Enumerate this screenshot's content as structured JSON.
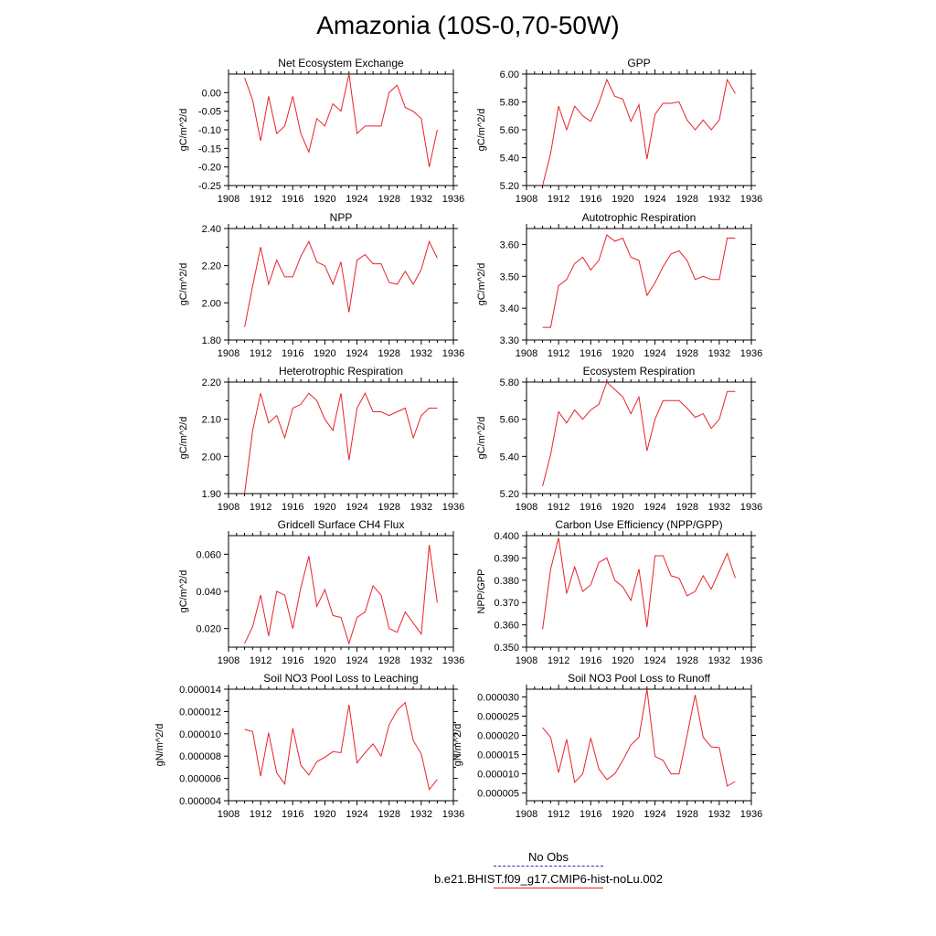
{
  "page": {
    "title": "Amazonia (10S-0,70-50W)"
  },
  "legend": {
    "obs_label": "No Obs",
    "obs_color": "#1f2fb8",
    "run_label": "b.e21.BHIST.f09_g17.CMIP6-hist-noLu.002",
    "run_color": "#e8222a"
  },
  "chart_data": [
    {
      "type": "line",
      "title": "Net Ecosystem Exchange",
      "xlabel": "",
      "ylabel": "gC/m^2/d",
      "xlim": [
        1908,
        1936
      ],
      "ylim": [
        -0.25,
        0.05
      ],
      "xticks": [
        1908,
        1912,
        1916,
        1920,
        1924,
        1928,
        1932,
        1936
      ],
      "yticks": [
        -0.25,
        -0.2,
        -0.15,
        -0.1,
        -0.05,
        0
      ],
      "ytick_labels": [
        "-0.25",
        "-0.20",
        "-0.15",
        "-0.10",
        "-0.05",
        "0.00"
      ],
      "x": [
        1910,
        1911,
        1912,
        1913,
        1914,
        1915,
        1916,
        1917,
        1918,
        1919,
        1920,
        1921,
        1922,
        1923,
        1924,
        1925,
        1926,
        1927,
        1928,
        1929,
        1930,
        1931,
        1932,
        1933,
        1934
      ],
      "series": [
        {
          "values": [
            0.04,
            -0.02,
            -0.13,
            -0.01,
            -0.11,
            -0.09,
            -0.01,
            -0.11,
            -0.16,
            -0.07,
            -0.09,
            -0.03,
            -0.05,
            0.05,
            -0.11,
            -0.09,
            -0.09,
            -0.09,
            0.0,
            0.02,
            -0.04,
            -0.05,
            -0.07,
            -0.2,
            -0.1
          ],
          "color": "#e8222a"
        }
      ]
    },
    {
      "type": "line",
      "title": "GPP",
      "xlabel": "",
      "ylabel": "gC/m^2/d",
      "xlim": [
        1908,
        1936
      ],
      "ylim": [
        5.2,
        6.0
      ],
      "xticks": [
        1908,
        1912,
        1916,
        1920,
        1924,
        1928,
        1932,
        1936
      ],
      "yticks": [
        5.2,
        5.4,
        5.6,
        5.8,
        6.0
      ],
      "ytick_labels": [
        "5.20",
        "5.40",
        "5.60",
        "5.80",
        "6.00"
      ],
      "x": [
        1910,
        1911,
        1912,
        1913,
        1914,
        1915,
        1916,
        1917,
        1918,
        1919,
        1920,
        1921,
        1922,
        1923,
        1924,
        1925,
        1926,
        1927,
        1928,
        1929,
        1930,
        1931,
        1932,
        1933,
        1934
      ],
      "series": [
        {
          "values": [
            5.2,
            5.43,
            5.77,
            5.6,
            5.77,
            5.7,
            5.66,
            5.79,
            5.96,
            5.84,
            5.82,
            5.66,
            5.78,
            5.39,
            5.71,
            5.79,
            5.79,
            5.8,
            5.67,
            5.6,
            5.67,
            5.6,
            5.67,
            5.96,
            5.86
          ],
          "color": "#e8222a"
        }
      ]
    },
    {
      "type": "line",
      "title": "NPP",
      "xlabel": "",
      "ylabel": "gC/m^2/d",
      "xlim": [
        1908,
        1936
      ],
      "ylim": [
        1.8,
        2.4
      ],
      "xticks": [
        1908,
        1912,
        1916,
        1920,
        1924,
        1928,
        1932,
        1936
      ],
      "yticks": [
        1.8,
        2.0,
        2.2,
        2.4
      ],
      "ytick_labels": [
        "1.80",
        "2.00",
        "2.20",
        "2.40"
      ],
      "x": [
        1910,
        1911,
        1912,
        1913,
        1914,
        1915,
        1916,
        1917,
        1918,
        1919,
        1920,
        1921,
        1922,
        1923,
        1924,
        1925,
        1926,
        1927,
        1928,
        1929,
        1930,
        1931,
        1932,
        1933,
        1934
      ],
      "series": [
        {
          "values": [
            1.87,
            2.09,
            2.3,
            2.1,
            2.23,
            2.14,
            2.14,
            2.25,
            2.33,
            2.22,
            2.2,
            2.1,
            2.22,
            1.95,
            2.23,
            2.26,
            2.21,
            2.21,
            2.11,
            2.1,
            2.17,
            2.1,
            2.18,
            2.33,
            2.24
          ],
          "color": "#e8222a"
        }
      ]
    },
    {
      "type": "line",
      "title": "Autotrophic Respiration",
      "xlabel": "",
      "ylabel": "gC/m^2/d",
      "xlim": [
        1908,
        1936
      ],
      "ylim": [
        3.3,
        3.65
      ],
      "xticks": [
        1908,
        1912,
        1916,
        1920,
        1924,
        1928,
        1932,
        1936
      ],
      "yticks": [
        3.3,
        3.4,
        3.5,
        3.6
      ],
      "ytick_labels": [
        "3.30",
        "3.40",
        "3.50",
        "3.60"
      ],
      "x": [
        1910,
        1911,
        1912,
        1913,
        1914,
        1915,
        1916,
        1917,
        1918,
        1919,
        1920,
        1921,
        1922,
        1923,
        1924,
        1925,
        1926,
        1927,
        1928,
        1929,
        1930,
        1931,
        1932,
        1933,
        1934
      ],
      "series": [
        {
          "values": [
            3.34,
            3.34,
            3.47,
            3.49,
            3.54,
            3.56,
            3.52,
            3.55,
            3.63,
            3.61,
            3.62,
            3.56,
            3.55,
            3.44,
            3.48,
            3.53,
            3.57,
            3.58,
            3.55,
            3.49,
            3.5,
            3.49,
            3.49,
            3.62,
            3.62
          ],
          "color": "#e8222a"
        }
      ]
    },
    {
      "type": "line",
      "title": "Heterotrophic Respiration",
      "xlabel": "",
      "ylabel": "gC/m^2/d",
      "xlim": [
        1908,
        1936
      ],
      "ylim": [
        1.9,
        2.2
      ],
      "xticks": [
        1908,
        1912,
        1916,
        1920,
        1924,
        1928,
        1932,
        1936
      ],
      "yticks": [
        1.9,
        2.0,
        2.1,
        2.2
      ],
      "ytick_labels": [
        "1.90",
        "2.00",
        "2.10",
        "2.20"
      ],
      "x": [
        1910,
        1911,
        1912,
        1913,
        1914,
        1915,
        1916,
        1917,
        1918,
        1919,
        1920,
        1921,
        1922,
        1923,
        1924,
        1925,
        1926,
        1927,
        1928,
        1929,
        1930,
        1931,
        1932,
        1933,
        1934
      ],
      "series": [
        {
          "values": [
            1.9,
            2.07,
            2.17,
            2.09,
            2.11,
            2.05,
            2.13,
            2.14,
            2.17,
            2.15,
            2.1,
            2.07,
            2.17,
            1.99,
            2.13,
            2.17,
            2.12,
            2.12,
            2.11,
            2.12,
            2.13,
            2.05,
            2.11,
            2.13,
            2.13
          ],
          "color": "#e8222a"
        }
      ]
    },
    {
      "type": "line",
      "title": "Ecosystem Respiration",
      "xlabel": "",
      "ylabel": "gC/m^2/d",
      "xlim": [
        1908,
        1936
      ],
      "ylim": [
        5.2,
        5.8
      ],
      "xticks": [
        1908,
        1912,
        1916,
        1920,
        1924,
        1928,
        1932,
        1936
      ],
      "yticks": [
        5.2,
        5.4,
        5.6,
        5.8
      ],
      "ytick_labels": [
        "5.20",
        "5.40",
        "5.60",
        "5.80"
      ],
      "x": [
        1910,
        1911,
        1912,
        1913,
        1914,
        1915,
        1916,
        1917,
        1918,
        1919,
        1920,
        1921,
        1922,
        1923,
        1924,
        1925,
        1926,
        1927,
        1928,
        1929,
        1930,
        1931,
        1932,
        1933,
        1934
      ],
      "series": [
        {
          "values": [
            5.24,
            5.41,
            5.64,
            5.58,
            5.65,
            5.6,
            5.65,
            5.68,
            5.8,
            5.76,
            5.72,
            5.63,
            5.72,
            5.43,
            5.6,
            5.7,
            5.7,
            5.7,
            5.66,
            5.61,
            5.63,
            5.55,
            5.6,
            5.75,
            5.75
          ],
          "color": "#e8222a"
        }
      ]
    },
    {
      "type": "line",
      "title": "Gridcell Surface CH4 Flux",
      "xlabel": "",
      "ylabel": "gC/m^2/d",
      "xlim": [
        1908,
        1936
      ],
      "ylim": [
        0.01,
        0.07
      ],
      "xticks": [
        1908,
        1912,
        1916,
        1920,
        1924,
        1928,
        1932,
        1936
      ],
      "yticks": [
        0.02,
        0.04,
        0.06
      ],
      "ytick_labels": [
        "0.020",
        "0.040",
        "0.060"
      ],
      "x": [
        1910,
        1911,
        1912,
        1913,
        1914,
        1915,
        1916,
        1917,
        1918,
        1919,
        1920,
        1921,
        1922,
        1923,
        1924,
        1925,
        1926,
        1927,
        1928,
        1929,
        1930,
        1931,
        1932,
        1933,
        1934
      ],
      "series": [
        {
          "values": [
            0.012,
            0.021,
            0.038,
            0.016,
            0.04,
            0.038,
            0.02,
            0.042,
            0.059,
            0.032,
            0.041,
            0.027,
            0.026,
            0.012,
            0.026,
            0.029,
            0.043,
            0.038,
            0.02,
            0.018,
            0.029,
            0.023,
            0.017,
            0.065,
            0.034
          ],
          "color": "#e8222a"
        }
      ]
    },
    {
      "type": "line",
      "title": "Carbon Use Efficiency (NPP/GPP)",
      "xlabel": "",
      "ylabel": "NPP/GPP",
      "xlim": [
        1908,
        1936
      ],
      "ylim": [
        0.35,
        0.4
      ],
      "xticks": [
        1908,
        1912,
        1916,
        1920,
        1924,
        1928,
        1932,
        1936
      ],
      "yticks": [
        0.35,
        0.36,
        0.37,
        0.38,
        0.39,
        0.4
      ],
      "ytick_labels": [
        "0.350",
        "0.360",
        "0.370",
        "0.380",
        "0.390",
        "0.400"
      ],
      "x": [
        1910,
        1911,
        1912,
        1913,
        1914,
        1915,
        1916,
        1917,
        1918,
        1919,
        1920,
        1921,
        1922,
        1923,
        1924,
        1925,
        1926,
        1927,
        1928,
        1929,
        1930,
        1931,
        1932,
        1933,
        1934
      ],
      "series": [
        {
          "values": [
            0.358,
            0.385,
            0.399,
            0.374,
            0.386,
            0.375,
            0.378,
            0.388,
            0.39,
            0.38,
            0.377,
            0.371,
            0.385,
            0.359,
            0.391,
            0.391,
            0.382,
            0.381,
            0.373,
            0.375,
            0.382,
            0.376,
            0.384,
            0.392,
            0.381
          ],
          "color": "#e8222a"
        }
      ]
    },
    {
      "type": "line",
      "title": "Soil NO3 Pool Loss to Leaching",
      "xlabel": "",
      "ylabel": "gN/m^2/d",
      "xlim": [
        1908,
        1936
      ],
      "ylim": [
        4e-06,
        1.4e-05
      ],
      "xticks": [
        1908,
        1912,
        1916,
        1920,
        1924,
        1928,
        1932,
        1936
      ],
      "yticks": [
        4e-06,
        6e-06,
        8e-06,
        1e-05,
        1.2e-05,
        1.4e-05
      ],
      "ytick_labels": [
        "0.000004",
        "0.000006",
        "0.000008",
        "0.000010",
        "0.000012",
        "0.000014"
      ],
      "x": [
        1910,
        1911,
        1912,
        1913,
        1914,
        1915,
        1916,
        1917,
        1918,
        1919,
        1920,
        1921,
        1922,
        1923,
        1924,
        1925,
        1926,
        1927,
        1928,
        1929,
        1930,
        1931,
        1932,
        1933,
        1934
      ],
      "series": [
        {
          "values": [
            1.04e-05,
            1.02e-05,
            6.2e-06,
            1.01e-05,
            6.5e-06,
            5.5e-06,
            1.05e-05,
            7.2e-06,
            6.3e-06,
            7.5e-06,
            7.9e-06,
            8.4e-06,
            8.3e-06,
            1.26e-05,
            7.4e-06,
            8.3e-06,
            9.1e-06,
            8e-06,
            1.08e-05,
            1.21e-05,
            1.28e-05,
            9.4e-06,
            8.2e-06,
            5e-06,
            5.9e-06
          ],
          "color": "#e8222a"
        }
      ]
    },
    {
      "type": "line",
      "title": "Soil NO3 Pool Loss to Runoff",
      "xlabel": "",
      "ylabel": "gN/m^2/d",
      "xlim": [
        1908,
        1936
      ],
      "ylim": [
        3e-06,
        3.2e-05
      ],
      "xticks": [
        1908,
        1912,
        1916,
        1920,
        1924,
        1928,
        1932,
        1936
      ],
      "yticks": [
        5e-06,
        1e-05,
        1.5e-05,
        2e-05,
        2.5e-05,
        3e-05
      ],
      "ytick_labels": [
        "0.000005",
        "0.000010",
        "0.000015",
        "0.000020",
        "0.000025",
        "0.000030"
      ],
      "x": [
        1910,
        1911,
        1912,
        1913,
        1914,
        1915,
        1916,
        1917,
        1918,
        1919,
        1920,
        1921,
        1922,
        1923,
        1924,
        1925,
        1926,
        1927,
        1928,
        1929,
        1930,
        1931,
        1932,
        1933,
        1934
      ],
      "series": [
        {
          "values": [
            2.2e-05,
            1.95e-05,
            1.03e-05,
            1.9e-05,
            7.8e-06,
            1e-05,
            1.93e-05,
            1.13e-05,
            8.5e-06,
            1e-05,
            1.35e-05,
            1.75e-05,
            1.95e-05,
            3.2e-05,
            1.45e-05,
            1.35e-05,
            1e-05,
            1e-05,
            2e-05,
            3.05e-05,
            1.95e-05,
            1.7e-05,
            1.68e-05,
            6.8e-06,
            8e-06
          ],
          "color": "#e8222a"
        }
      ]
    }
  ]
}
